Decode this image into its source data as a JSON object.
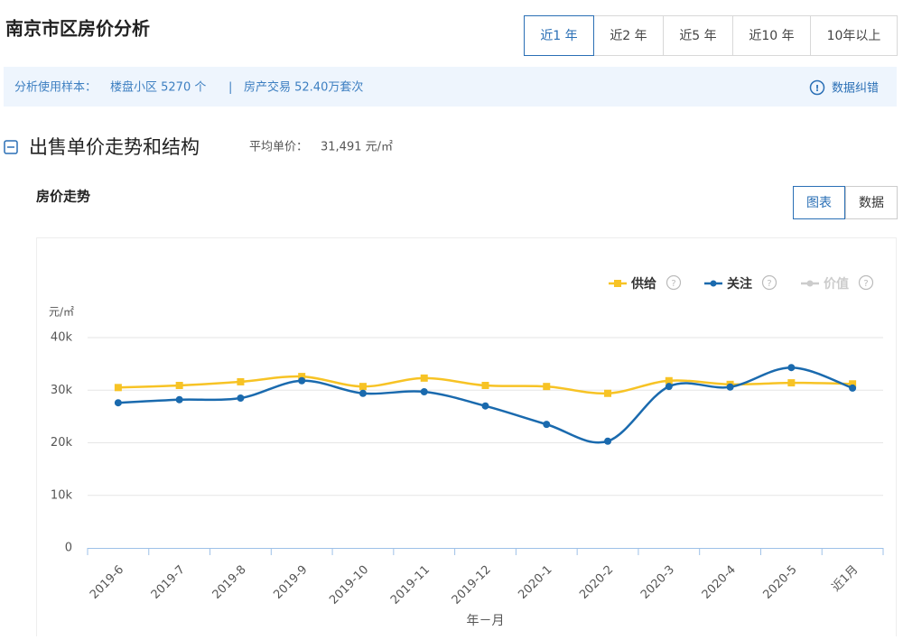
{
  "header": {
    "title": "南京市区房价分析",
    "tabs": [
      "近1 年",
      "近2 年",
      "近5 年",
      "近10 年",
      "10年以上"
    ],
    "active_tab": 0
  },
  "info": {
    "label": "分析使用样本：",
    "items": [
      "楼盘小区 5270 个",
      "房产交易 52.40万套次"
    ],
    "separator": "|",
    "feedback": "数据纠错"
  },
  "section": {
    "title": "出售单价走势和结构",
    "avg_label": "平均单价：",
    "avg_value": "31,491 元/㎡"
  },
  "panel": {
    "title": "房价走势",
    "views": [
      "图表",
      "数据"
    ],
    "active_view": 0
  },
  "chart_data": {
    "type": "line",
    "categories": [
      "2019-6",
      "2019-7",
      "2019-8",
      "2019-9",
      "2019-10",
      "2019-11",
      "2019-12",
      "2020-1",
      "2020-2",
      "2020-3",
      "2020-4",
      "2020-5",
      "近1月"
    ],
    "series": [
      {
        "name": "供给",
        "color": "#f7c325",
        "marker": "square",
        "visible": true,
        "values": [
          30500,
          30900,
          31600,
          32600,
          30700,
          32300,
          30900,
          30700,
          29400,
          31800,
          31100,
          31400,
          31200
        ]
      },
      {
        "name": "关注",
        "color": "#1a6aae",
        "marker": "circle",
        "visible": true,
        "values": [
          27600,
          28200,
          28500,
          31800,
          29400,
          29700,
          27000,
          23500,
          20300,
          30700,
          30600,
          34300,
          30400
        ]
      },
      {
        "name": "价值",
        "color": "#cccccc",
        "marker": "circle",
        "visible": false,
        "values": [
          null,
          null,
          null,
          null,
          null,
          null,
          null,
          null,
          null,
          null,
          null,
          null,
          null
        ]
      }
    ],
    "ylabel": "元/㎡",
    "xlabel": "年－月",
    "ylim": [
      0,
      40000
    ],
    "yticks": [
      0,
      {
        "value": 10000,
        "label": "10k"
      },
      {
        "value": 20000,
        "label": "20k"
      },
      {
        "value": 30000,
        "label": "30k"
      },
      {
        "value": 40000,
        "label": "40k"
      }
    ],
    "grid": true,
    "legend": "top-right"
  }
}
